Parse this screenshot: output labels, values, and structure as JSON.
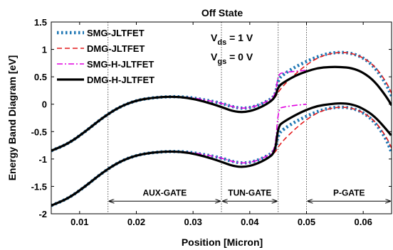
{
  "chart_data": {
    "type": "line",
    "title": "Off State",
    "xlabel": "Position [Micron]",
    "ylabel": "Energy Band Diagram [eV]",
    "xlim": [
      0.005,
      0.065
    ],
    "ylim": [
      -2,
      1.5
    ],
    "xticks": [
      0.01,
      0.02,
      0.03,
      0.04,
      0.05,
      0.06
    ],
    "xtick_labels": [
      "0.01",
      "0.02",
      "0.03",
      "0.04",
      "0.05",
      "0.06"
    ],
    "yticks": [
      -2,
      -1.5,
      -1,
      -0.5,
      0,
      0.5,
      1,
      1.5
    ],
    "ytick_labels": [
      "-2",
      "-1.5",
      "-1",
      "-0.5",
      "0",
      "0.5",
      "1",
      "1.5"
    ],
    "grid": false,
    "legend_position": "top-left",
    "annotations": {
      "vds_label": "V",
      "vds_sub": "ds",
      "vds_value": " = 1 V",
      "vgs_label": "V",
      "vgs_sub": "gs",
      "vgs_value": " = 0 V"
    },
    "regions": [
      {
        "label": "AUX-GATE",
        "x_start": 0.015,
        "x_end": 0.035
      },
      {
        "label": "TUN-GATE",
        "x_start": 0.035,
        "x_end": 0.045
      },
      {
        "label": "P-GATE",
        "x_start": 0.05,
        "x_end": 0.065
      }
    ],
    "divider_x": [
      0.015,
      0.035,
      0.045,
      0.05
    ],
    "series": [
      {
        "name": "SMG-JLTFET",
        "color": "#1f77b4",
        "style": "dotted",
        "x": [
          0.005,
          0.008,
          0.011,
          0.014,
          0.017,
          0.02,
          0.023,
          0.026,
          0.029,
          0.032,
          0.035,
          0.037,
          0.039,
          0.041,
          0.043,
          0.0445,
          0.045,
          0.046,
          0.048,
          0.05,
          0.052,
          0.054,
          0.056,
          0.058,
          0.06,
          0.062,
          0.064,
          0.065
        ],
        "y_upper": [
          -0.85,
          -0.72,
          -0.5,
          -0.25,
          -0.05,
          0.07,
          0.12,
          0.14,
          0.13,
          0.08,
          0.02,
          -0.05,
          -0.08,
          -0.04,
          0.05,
          0.15,
          0.45,
          0.55,
          0.68,
          0.78,
          0.87,
          0.93,
          0.95,
          0.93,
          0.85,
          0.68,
          0.38,
          0.15
        ],
        "y_lower": [
          -1.85,
          -1.72,
          -1.5,
          -1.25,
          -1.05,
          -0.93,
          -0.88,
          -0.86,
          -0.87,
          -0.92,
          -0.98,
          -1.05,
          -1.08,
          -1.04,
          -0.95,
          -0.85,
          -0.55,
          -0.45,
          -0.32,
          -0.22,
          -0.13,
          -0.07,
          -0.05,
          -0.07,
          -0.15,
          -0.32,
          -0.62,
          -0.88
        ]
      },
      {
        "name": "DMG-JLTFET",
        "color": "#e41a1c",
        "style": "dashed",
        "x": [
          0.005,
          0.008,
          0.011,
          0.014,
          0.017,
          0.02,
          0.023,
          0.026,
          0.029,
          0.032,
          0.035,
          0.037,
          0.039,
          0.041,
          0.043,
          0.0445,
          0.045,
          0.046,
          0.048,
          0.05,
          0.052,
          0.054,
          0.056,
          0.058,
          0.06,
          0.062,
          0.064,
          0.065
        ],
        "y_upper": [
          -0.85,
          -0.72,
          -0.5,
          -0.25,
          -0.05,
          0.07,
          0.12,
          0.14,
          0.12,
          0.05,
          -0.05,
          -0.13,
          -0.15,
          -0.1,
          0.0,
          0.12,
          0.22,
          0.35,
          0.55,
          0.72,
          0.85,
          0.92,
          0.95,
          0.93,
          0.85,
          0.7,
          0.42,
          0.2
        ],
        "y_lower": [
          -1.85,
          -1.72,
          -1.5,
          -1.25,
          -1.05,
          -0.93,
          -0.88,
          -0.86,
          -0.88,
          -0.95,
          -1.05,
          -1.13,
          -1.15,
          -1.1,
          -1.0,
          -0.88,
          -0.78,
          -0.65,
          -0.45,
          -0.28,
          -0.15,
          -0.08,
          -0.05,
          -0.07,
          -0.15,
          -0.3,
          -0.58,
          -0.8
        ]
      },
      {
        "name": "SMG-H-JLTFET",
        "color": "#e000e0",
        "style": "dashdot",
        "x": [
          0.005,
          0.008,
          0.011,
          0.014,
          0.017,
          0.02,
          0.023,
          0.026,
          0.029,
          0.032,
          0.035,
          0.037,
          0.039,
          0.041,
          0.043,
          0.0445,
          0.045,
          0.046,
          0.048,
          0.05
        ],
        "y_upper": [
          -0.85,
          -0.72,
          -0.5,
          -0.25,
          -0.05,
          0.07,
          0.12,
          0.14,
          0.13,
          0.08,
          0.02,
          -0.05,
          -0.08,
          -0.04,
          0.05,
          0.15,
          0.55,
          0.58,
          0.6,
          0.62
        ],
        "y_lower": [
          -1.85,
          -1.72,
          -1.5,
          -1.25,
          -1.05,
          -0.93,
          -0.88,
          -0.86,
          -0.87,
          -0.92,
          -0.98,
          -1.05,
          -1.08,
          -1.04,
          -0.95,
          -0.85,
          -0.08,
          -0.05,
          -0.02,
          0.0
        ]
      },
      {
        "name": "DMG-H-JLTFET",
        "color": "#000000",
        "style": "solid",
        "x": [
          0.005,
          0.008,
          0.011,
          0.014,
          0.017,
          0.02,
          0.023,
          0.026,
          0.029,
          0.032,
          0.035,
          0.037,
          0.039,
          0.041,
          0.043,
          0.0445,
          0.045,
          0.046,
          0.048,
          0.05,
          0.052,
          0.054,
          0.056,
          0.058,
          0.06,
          0.062,
          0.064,
          0.065
        ],
        "y_upper": [
          -0.85,
          -0.72,
          -0.5,
          -0.25,
          -0.05,
          0.07,
          0.12,
          0.14,
          0.12,
          0.05,
          -0.05,
          -0.13,
          -0.15,
          -0.1,
          0.0,
          0.12,
          0.32,
          0.4,
          0.52,
          0.6,
          0.66,
          0.68,
          0.68,
          0.66,
          0.58,
          0.42,
          0.15,
          -0.02
        ],
        "y_lower": [
          -1.85,
          -1.72,
          -1.5,
          -1.25,
          -1.05,
          -0.93,
          -0.88,
          -0.86,
          -0.88,
          -0.95,
          -1.05,
          -1.13,
          -1.15,
          -1.1,
          -1.0,
          -0.88,
          -0.4,
          -0.32,
          -0.2,
          -0.1,
          -0.03,
          0.0,
          0.02,
          0.0,
          -0.08,
          -0.22,
          -0.45,
          -0.58
        ]
      }
    ]
  }
}
